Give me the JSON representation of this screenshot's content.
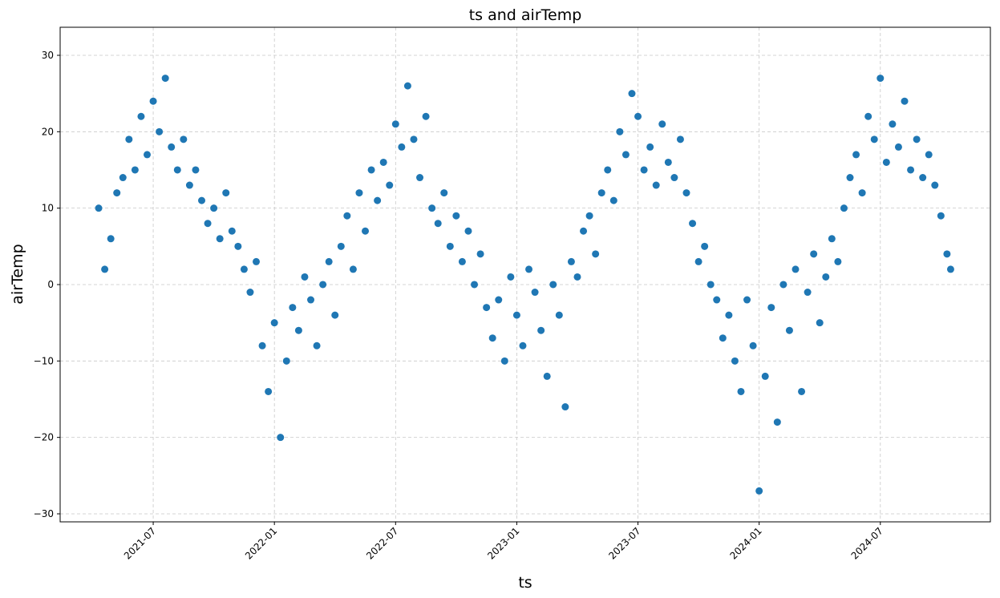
{
  "chart_data": {
    "type": "scatter",
    "title": "ts and airTemp",
    "x_label": "ts",
    "y_label": "airTemp",
    "color": "#1f77b4",
    "grid": true,
    "xlim": [
      2021.116,
      2024.954
    ],
    "ylim": [
      -31.05,
      33.67
    ],
    "xticks": [
      {
        "value": 2021.5,
        "label": "2021-07"
      },
      {
        "value": 2022.0,
        "label": "2022-01"
      },
      {
        "value": 2022.5,
        "label": "2022-07"
      },
      {
        "value": 2023.0,
        "label": "2023-01"
      },
      {
        "value": 2023.5,
        "label": "2023-07"
      },
      {
        "value": 2024.0,
        "label": "2024-01"
      },
      {
        "value": 2024.5,
        "label": "2024-07"
      }
    ],
    "yticks": [
      {
        "value": -30,
        "label": "−30"
      },
      {
        "value": -20,
        "label": "−20"
      },
      {
        "value": -10,
        "label": "−10"
      },
      0,
      10,
      20,
      30
    ],
    "x": [
      2021.275,
      2021.3,
      2021.325,
      2021.35,
      2021.375,
      2021.4,
      2021.425,
      2021.45,
      2021.475,
      2021.5,
      2021.525,
      2021.55,
      2021.575,
      2021.6,
      2021.625,
      2021.65,
      2021.675,
      2021.7,
      2021.725,
      2021.75,
      2021.775,
      2021.8,
      2021.825,
      2021.85,
      2021.875,
      2021.9,
      2021.925,
      2021.95,
      2021.975,
      2022.0,
      2022.025,
      2022.05,
      2022.075,
      2022.1,
      2022.125,
      2022.15,
      2022.175,
      2022.2,
      2022.225,
      2022.25,
      2022.275,
      2022.3,
      2022.325,
      2022.35,
      2022.375,
      2022.4,
      2022.425,
      2022.45,
      2022.475,
      2022.5,
      2022.525,
      2022.55,
      2022.575,
      2022.6,
      2022.625,
      2022.65,
      2022.675,
      2022.7,
      2022.725,
      2022.75,
      2022.775,
      2022.8,
      2022.825,
      2022.85,
      2022.875,
      2022.9,
      2022.925,
      2022.95,
      2022.975,
      2023.0,
      2023.025,
      2023.05,
      2023.075,
      2023.1,
      2023.125,
      2023.15,
      2023.175,
      2023.2,
      2023.225,
      2023.25,
      2023.275,
      2023.3,
      2023.325,
      2023.35,
      2023.375,
      2023.4,
      2023.425,
      2023.45,
      2023.475,
      2023.5,
      2023.525,
      2023.55,
      2023.575,
      2023.6,
      2023.625,
      2023.65,
      2023.675,
      2023.7,
      2023.725,
      2023.75,
      2023.775,
      2023.8,
      2023.825,
      2023.85,
      2023.875,
      2023.9,
      2023.925,
      2023.95,
      2023.975,
      2024.0,
      2024.025,
      2024.05,
      2024.075,
      2024.1,
      2024.125,
      2024.15,
      2024.175,
      2024.2,
      2024.225,
      2024.25,
      2024.275,
      2024.3,
      2024.325,
      2024.35,
      2024.375,
      2024.4,
      2024.425,
      2024.45,
      2024.475,
      2024.5,
      2024.525,
      2024.55,
      2024.575,
      2024.6,
      2024.625,
      2024.65,
      2024.675,
      2024.7,
      2024.725,
      2024.75,
      2024.775,
      2024.79
    ],
    "values": [
      10,
      2,
      6,
      12,
      14,
      19,
      15,
      22,
      17,
      24,
      20,
      27,
      18,
      15,
      19,
      13,
      15,
      11,
      8,
      10,
      6,
      12,
      7,
      5,
      2,
      -1,
      3,
      -8,
      -14,
      -5,
      -20,
      -10,
      -3,
      -6,
      1,
      -2,
      -8,
      0,
      3,
      -4,
      5,
      9,
      2,
      12,
      7,
      15,
      11,
      16,
      13,
      21,
      18,
      26,
      19,
      14,
      22,
      10,
      8,
      12,
      5,
      9,
      3,
      7,
      0,
      4,
      -3,
      -7,
      -2,
      -10,
      1,
      -4,
      -8,
      2,
      -1,
      -6,
      -12,
      0,
      -4,
      -16,
      3,
      1,
      7,
      9,
      4,
      12,
      15,
      11,
      20,
      17,
      25,
      22,
      15,
      18,
      13,
      21,
      16,
      14,
      19,
      12,
      8,
      3,
      5,
      0,
      -2,
      -7,
      -4,
      -10,
      -14,
      -2,
      -8,
      -27,
      -12,
      -3,
      -18,
      0,
      -6,
      2,
      -14,
      -1,
      4,
      -5,
      1,
      6,
      3,
      10,
      14,
      17,
      12,
      22,
      19,
      27,
      16,
      21,
      18,
      24,
      15,
      19,
      14,
      17,
      13,
      9,
      4,
      2
    ]
  }
}
